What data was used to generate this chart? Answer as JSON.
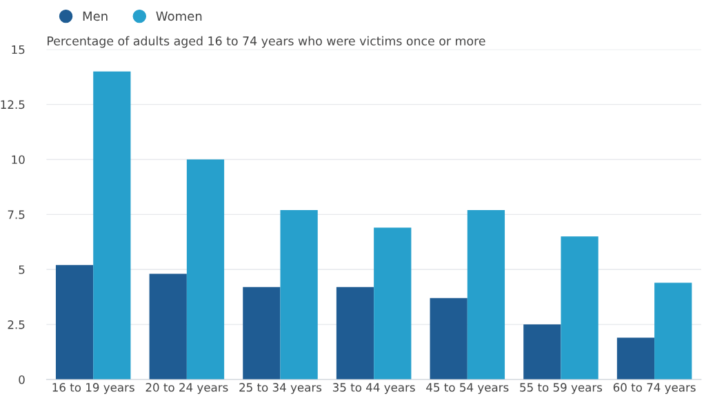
{
  "chart_data": {
    "type": "bar",
    "subtitle": "Percentage of adults aged 16 to 74 years who were victims once or more",
    "categories": [
      "16 to 19 years",
      "20 to 24 years",
      "25 to 34 years",
      "35 to 44 years",
      "45 to 54 years",
      "55 to 59 years",
      "60 to 74 years"
    ],
    "series": [
      {
        "name": "Men",
        "color": "#1f5c93",
        "values": [
          5.2,
          4.8,
          4.2,
          4.2,
          3.7,
          2.5,
          1.9
        ]
      },
      {
        "name": "Women",
        "color": "#27a0cc",
        "values": [
          14.0,
          10.0,
          7.7,
          6.9,
          7.7,
          6.5,
          4.4
        ]
      }
    ],
    "ylim": [
      0,
      15
    ],
    "yticks": [
      0,
      2.5,
      5,
      7.5,
      10,
      12.5,
      15
    ],
    "grid": "y",
    "legend": "top left"
  }
}
